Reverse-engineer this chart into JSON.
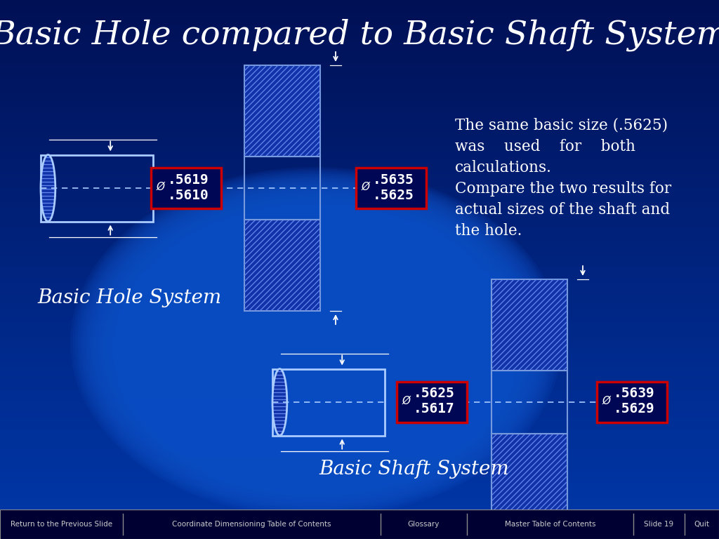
{
  "title": "Basic Hole compared to Basic Shaft System",
  "title_fontsize": 34,
  "title_color": "#FFFFFF",
  "annotation_color": "#FFFFFF",
  "bottom_items": [
    "Return to the Previous Slide",
    "Coordinate Dimensioning Table of Contents",
    "Glossary",
    "Master Table of Contents",
    "Slide 19",
    "Quit"
  ],
  "bhs_label": "Basic Hole System",
  "bss_label": "Basic Shaft System",
  "desc_lines": [
    "The same basic size (.5625)",
    "was    used    for    both",
    "calculations.",
    "Compare the two results for",
    "actual sizes of the shaft and",
    "the hole."
  ],
  "bhs_shaft_dim": [
    ".5619",
    ".5610"
  ],
  "bhs_hole_dim": [
    ".5635",
    ".5625"
  ],
  "bss_shaft_dim": [
    ".5625",
    ".5617"
  ],
  "bss_hole_dim": [
    ".5639",
    ".5629"
  ],
  "nav_x_positions": [
    0,
    175,
    542,
    665,
    902,
    975,
    1024
  ],
  "hatch_fill_color": "#1133AA",
  "hatch_line_color": "#6688EE",
  "hatch_edge_color": "#7799DD",
  "shaft_outline_color": "#AACCFF",
  "dim_box_bg": "#000855",
  "dim_box_border": "#CC0000",
  "center_line_color": "#AACCFF",
  "arrow_color": "white",
  "nav_bar_color": "#000033",
  "nav_text_color": "#CCCCCC",
  "nav_div_color": "#888888"
}
